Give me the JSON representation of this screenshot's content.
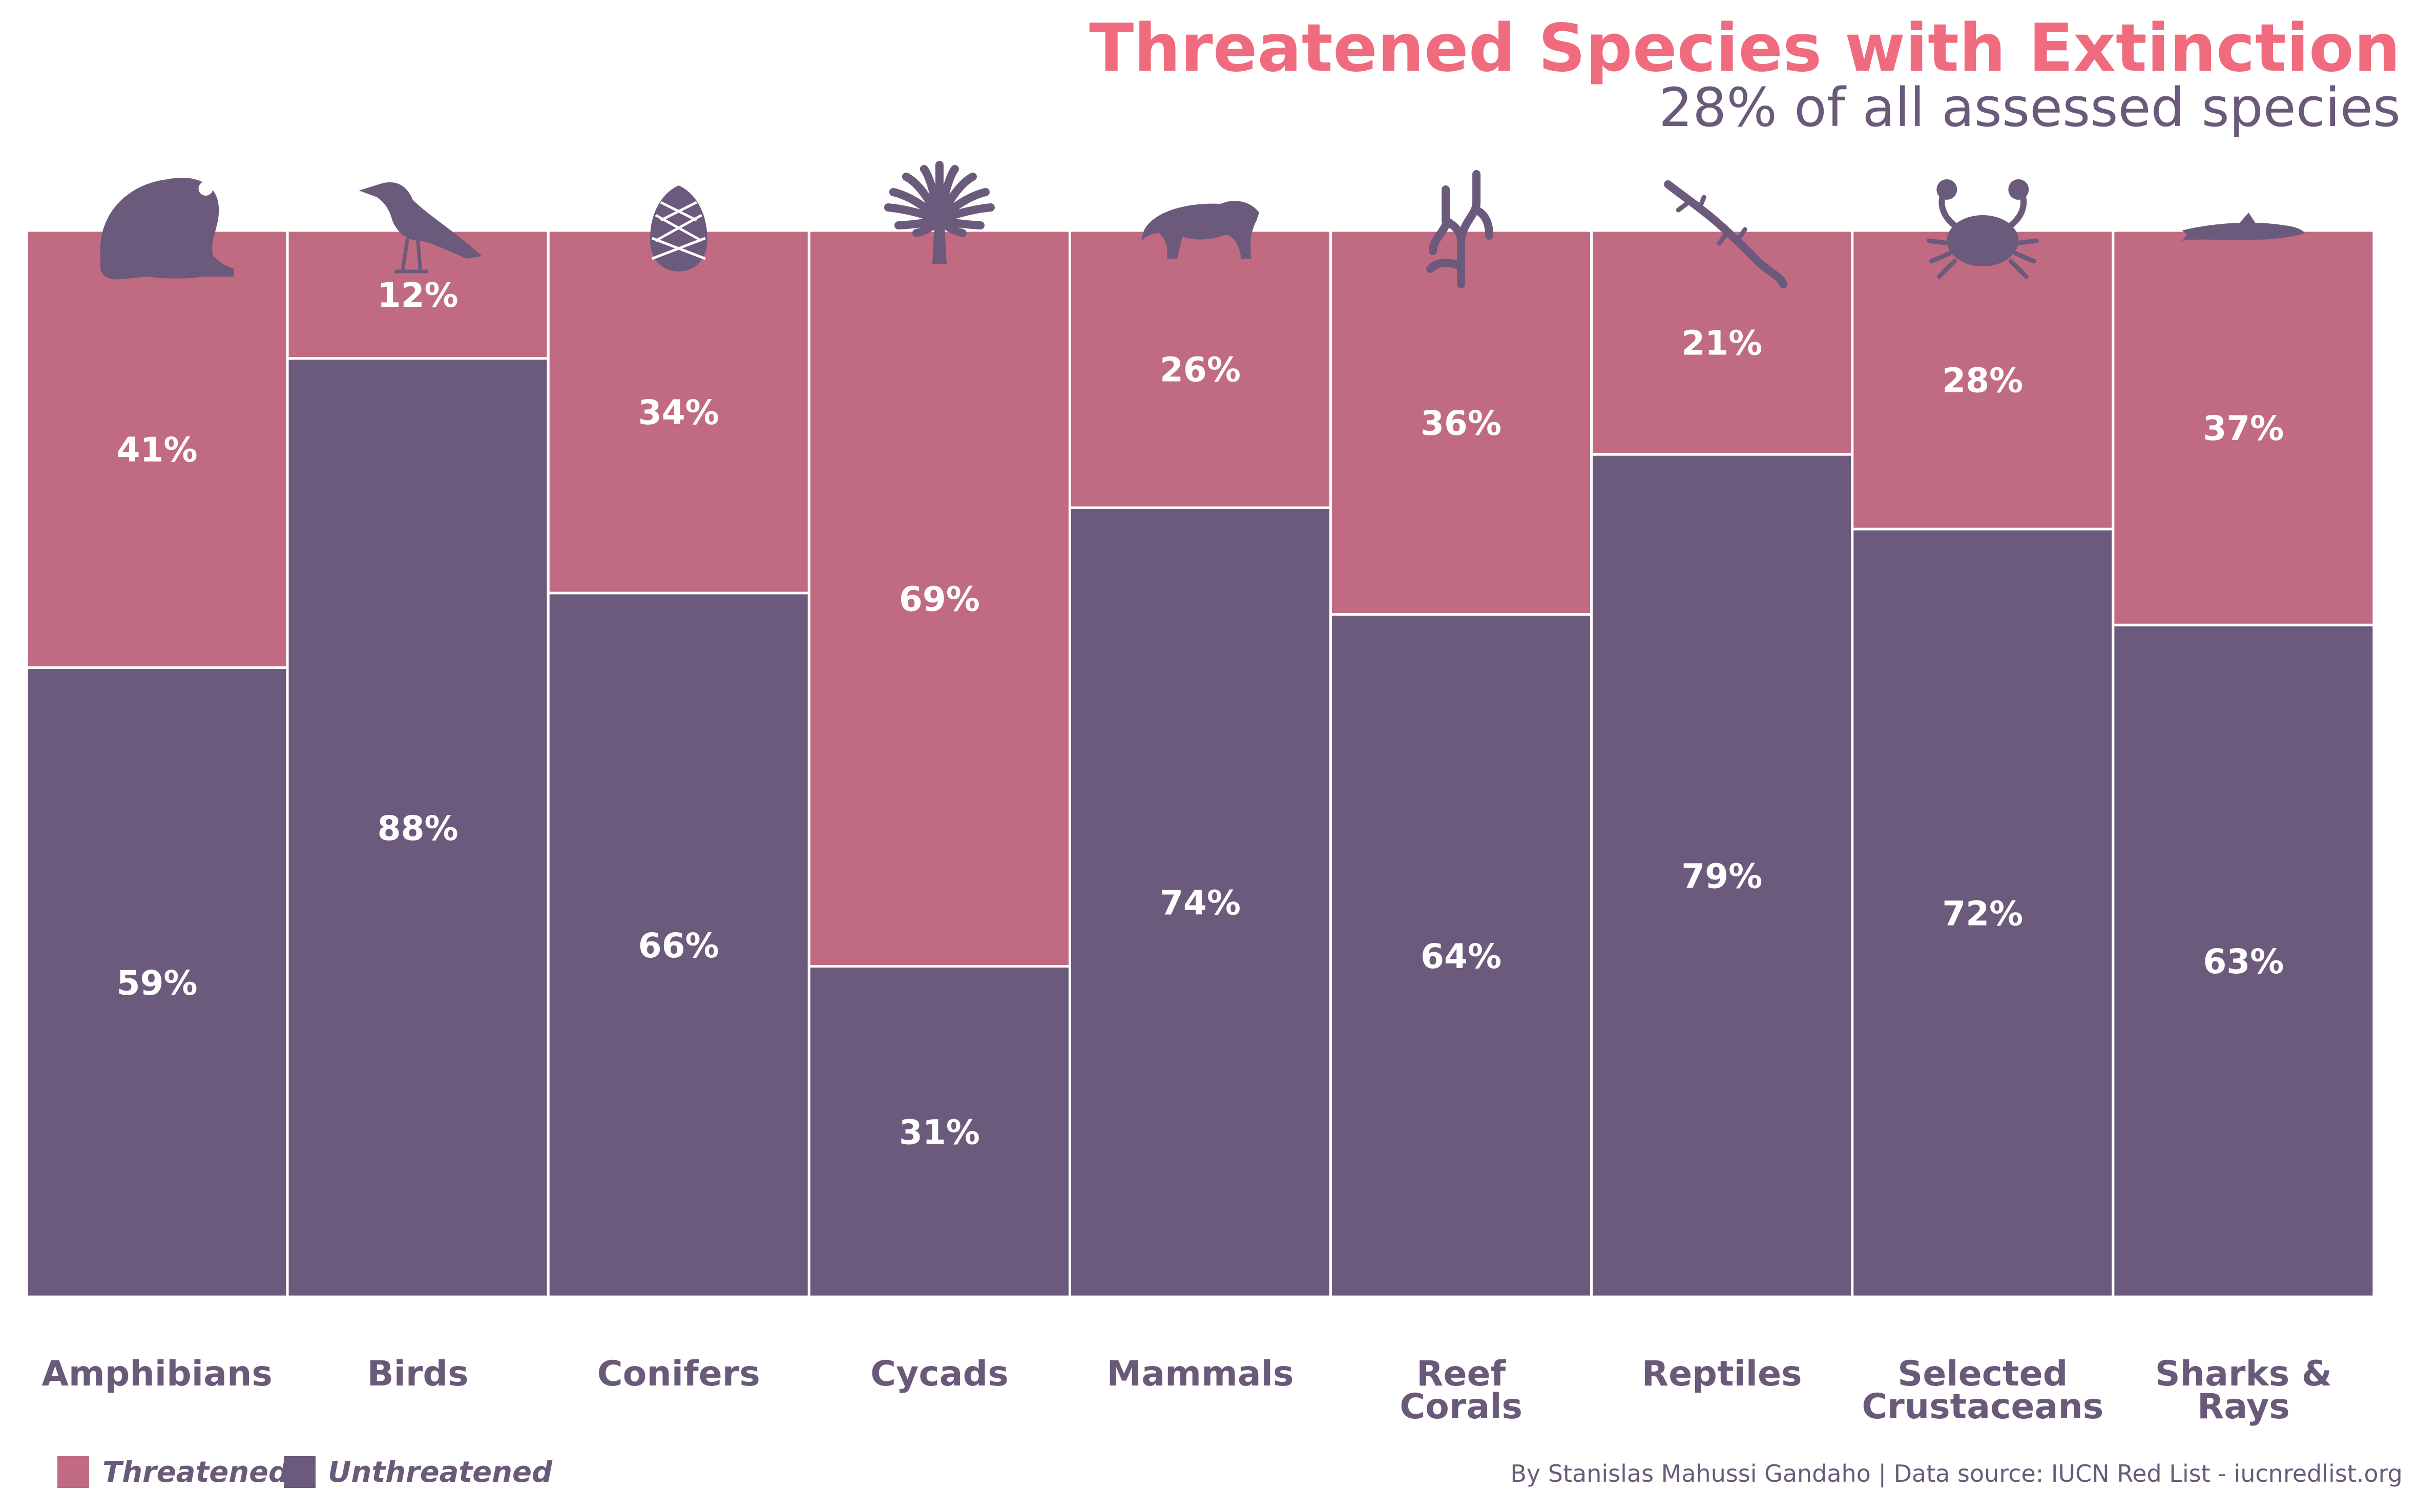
{
  "title": "Threatened Species with Extinction",
  "subtitle": "28% of all assessed species",
  "credit": "By Stanislas Mahussi Gandaho | Data source: IUCN Red List - iucnredlist.org",
  "legend": [
    {
      "label": "Threatened",
      "color": "#c06b81"
    },
    {
      "label": "Unthreatened",
      "color": "#6b5a7b"
    }
  ],
  "colors": {
    "threatened": "#c06b81",
    "unthreatened": "#6b5a7b",
    "icon": "#6b5a7b",
    "title": "#ef6b7d",
    "text": "#6a5a7a"
  },
  "icons": [
    "frog-icon",
    "bird-icon",
    "pinecone-icon",
    "palm-icon",
    "tiger-icon",
    "coral-icon",
    "lizard-icon",
    "crab-icon",
    "shark-icon"
  ],
  "chart_data": {
    "type": "bar",
    "stacked": true,
    "normalized": true,
    "categories": [
      "Amphibians",
      "Birds",
      "Conifers",
      "Cycads",
      "Mammals",
      "Reef Corals",
      "Reptiles",
      "Selected Crustaceans",
      "Sharks & Rays"
    ],
    "category_lines": [
      [
        "Amphibians"
      ],
      [
        "Birds"
      ],
      [
        "Conifers"
      ],
      [
        "Cycads"
      ],
      [
        "Mammals"
      ],
      [
        "Reef",
        "Corals"
      ],
      [
        "Reptiles"
      ],
      [
        "Selected",
        "Crustaceans"
      ],
      [
        "Sharks &",
        "Rays"
      ]
    ],
    "series": [
      {
        "name": "Threatened",
        "values": [
          41,
          12,
          34,
          69,
          26,
          36,
          21,
          28,
          37
        ]
      },
      {
        "name": "Unthreatened",
        "values": [
          59,
          88,
          66,
          31,
          74,
          64,
          79,
          72,
          63
        ]
      }
    ],
    "ylim": [
      0,
      100
    ],
    "unit": "%",
    "grid": false,
    "legend_position": "bottom-left"
  }
}
